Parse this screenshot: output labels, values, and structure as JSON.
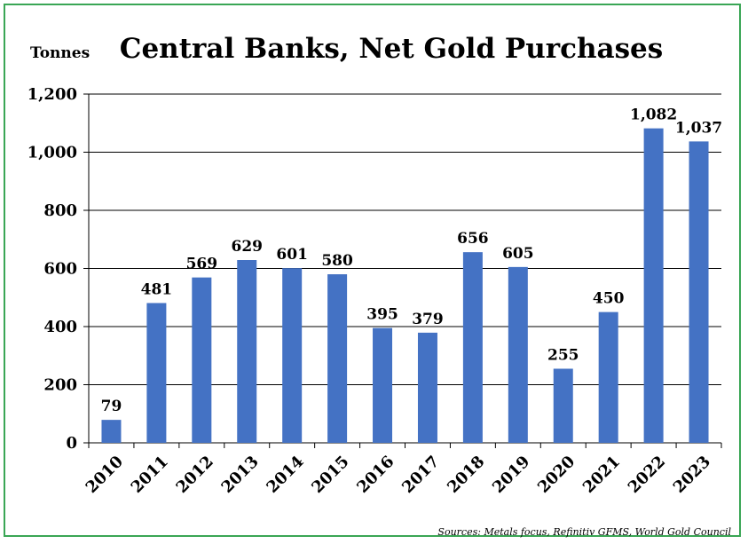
{
  "chart_data": {
    "type": "bar",
    "title": "Central Banks, Net Gold Purchases",
    "ylabel": "Tonnes",
    "xlabel": "",
    "categories": [
      "2010",
      "2011",
      "2012",
      "2013",
      "2014",
      "2015",
      "2016",
      "2017",
      "2018",
      "2019",
      "2020",
      "2021",
      "2022",
      "2023"
    ],
    "values": [
      79,
      481,
      569,
      629,
      601,
      580,
      395,
      379,
      656,
      605,
      255,
      450,
      1082,
      1037
    ],
    "data_labels": [
      "79",
      "481",
      "569",
      "629",
      "601",
      "580",
      "395",
      "379",
      "656",
      "605",
      "255",
      "450",
      "1,082",
      "1,037"
    ],
    "yticks": [
      0,
      200,
      400,
      600,
      800,
      1000,
      1200
    ],
    "ytick_labels": [
      "0",
      "200",
      "400",
      "600",
      "800",
      "1,000",
      "1,200"
    ],
    "ylim": [
      0,
      1200
    ],
    "grid": true,
    "bar_color": "#4472c4",
    "frame_color": "#3aa655",
    "source": "Sources: Metals focus, Refinitiv GFMS, World Gold Council"
  }
}
